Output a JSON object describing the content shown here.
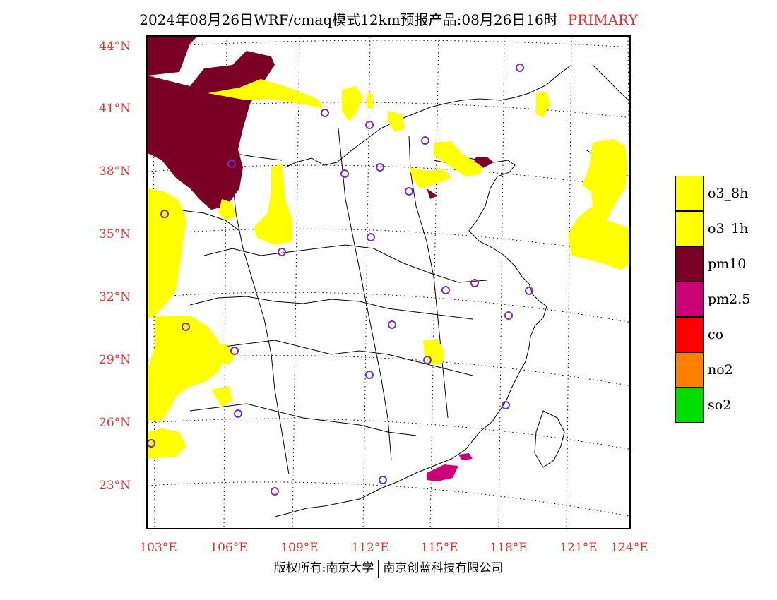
{
  "title": {
    "main": "2024年08月26日WRF/cmaq模式12km预报产品:08月26日16时",
    "tag": "PRIMARY"
  },
  "lat_labels": [
    "44°N",
    "41°N",
    "38°N",
    "35°N",
    "32°N",
    "29°N",
    "26°N",
    "23°N"
  ],
  "lon_labels": [
    "103°E",
    "106°E",
    "109°E",
    "112°E",
    "115°E",
    "118°E",
    "121°E",
    "124°E"
  ],
  "legend": [
    {
      "label": "o3_8h",
      "color": "#ffff00"
    },
    {
      "label": "o3_1h",
      "color": "#ffff00"
    },
    {
      "label": "pm10",
      "color": "#7b0025"
    },
    {
      "label": "pm2.5",
      "color": "#cc0077"
    },
    {
      "label": "co",
      "color": "#ff0000"
    },
    {
      "label": "no2",
      "color": "#ff8000"
    },
    {
      "label": "so2",
      "color": "#00dd00"
    }
  ],
  "station_marker_color": "#7b2fbf",
  "footer": {
    "left": "版权所有:南京大学",
    "right": "南京创蓝科技有限公司"
  }
}
